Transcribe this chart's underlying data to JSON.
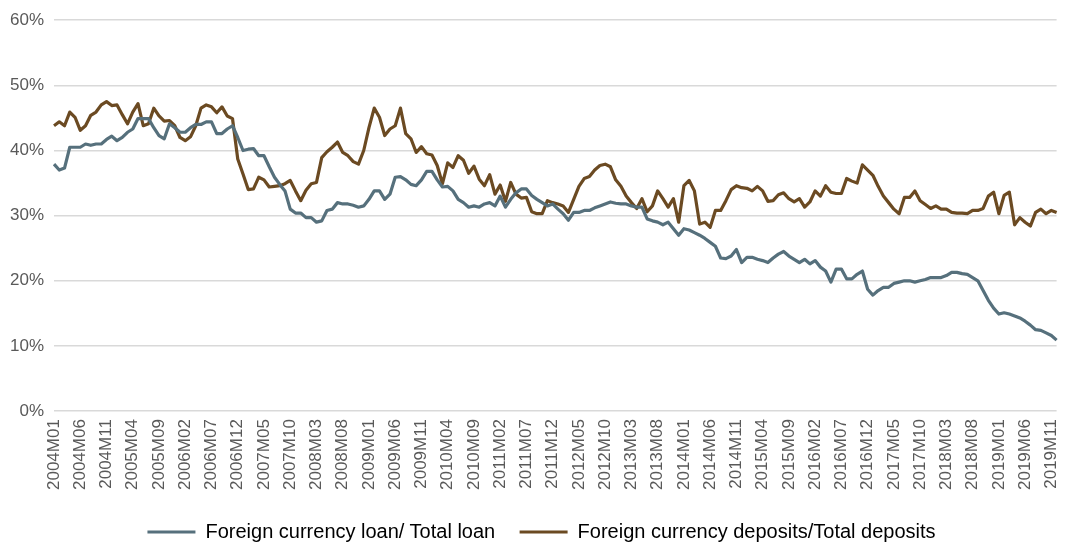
{
  "chart_data": {
    "type": "line",
    "categories": [
      "2004M01",
      null,
      null,
      null,
      null,
      "2004M06",
      null,
      null,
      null,
      null,
      "2004M11",
      null,
      null,
      null,
      null,
      "2005M04",
      null,
      null,
      null,
      null,
      "2005M09",
      null,
      null,
      null,
      null,
      "2006M02",
      null,
      null,
      null,
      null,
      "2006M07",
      null,
      null,
      null,
      null,
      "2006M12",
      null,
      null,
      null,
      null,
      "2007M05",
      null,
      null,
      null,
      null,
      "2007M10",
      null,
      null,
      null,
      null,
      "2008M03",
      null,
      null,
      null,
      null,
      "2008M08",
      null,
      null,
      null,
      null,
      "2009M01",
      null,
      null,
      null,
      null,
      "2009M06",
      null,
      null,
      null,
      null,
      "2009M11",
      null,
      null,
      null,
      null,
      "2010M04",
      null,
      null,
      null,
      null,
      "2010M09",
      null,
      null,
      null,
      null,
      "2011M02",
      null,
      null,
      null,
      null,
      "2011M07",
      null,
      null,
      null,
      null,
      "2011M12",
      null,
      null,
      null,
      null,
      "2012M05",
      null,
      null,
      null,
      null,
      "2012M10",
      null,
      null,
      null,
      null,
      "2013M03",
      null,
      null,
      null,
      null,
      "2013M08",
      null,
      null,
      null,
      null,
      "2014M01",
      null,
      null,
      null,
      null,
      "2014M06",
      null,
      null,
      null,
      null,
      "2014M11",
      null,
      null,
      null,
      null,
      "2015M04",
      null,
      null,
      null,
      null,
      "2015M09",
      null,
      null,
      null,
      null,
      "2016M02",
      null,
      null,
      null,
      null,
      "2016M07",
      null,
      null,
      null,
      null,
      "2016M12",
      null,
      null,
      null,
      null,
      "2017M05",
      null,
      null,
      null,
      null,
      "2017M10",
      null,
      null,
      null,
      null,
      "2018M03",
      null,
      null,
      null,
      null,
      "2018M08",
      null,
      null,
      null,
      null,
      "2019M01",
      null,
      null,
      null,
      null,
      "2019M06",
      null,
      null,
      null,
      null,
      "2019M11",
      null
    ],
    "series": [
      {
        "name": "Foreign currency loan/ Total loan",
        "color": "#56707c",
        "values": [
          37.9,
          37.0,
          37.3,
          40.5,
          40.5,
          40.5,
          41.0,
          40.8,
          41,
          41,
          41.7,
          42.2,
          41.5,
          42,
          42.8,
          43.3,
          44.9,
          44.9,
          44.9,
          43.5,
          42.3,
          41.8,
          44.1,
          43.5,
          42.8,
          42.8,
          43.5,
          44,
          44,
          44.4,
          44.4,
          42.6,
          42.6,
          43.3,
          43.8,
          42,
          40,
          40.2,
          40.3,
          39.2,
          39.2,
          37.5,
          35.9,
          34.8,
          33.8,
          31,
          30.4,
          30.4,
          29.7,
          29.7,
          29.0,
          29.2,
          30.8,
          31,
          32,
          31.8,
          31.8,
          31.6,
          31.3,
          31.5,
          32.5,
          33.8,
          33.8,
          32.5,
          33.3,
          35.9,
          36,
          35.5,
          34.8,
          34.6,
          35.5,
          36.8,
          36.8,
          35.5,
          34.4,
          34.5,
          33.8,
          32.5,
          32,
          31.3,
          31.5,
          31.3,
          31.8,
          32,
          31.5,
          33,
          31.3,
          32.5,
          33.5,
          34.1,
          34.1,
          33.1,
          32.5,
          32,
          31.5,
          31.8,
          31,
          30.3,
          29.3,
          30.5,
          30.5,
          30.8,
          30.8,
          31.2,
          31.5,
          31.8,
          32.1,
          31.9,
          31.8,
          31.8,
          31.5,
          31.3,
          31.3,
          29.5,
          29.2,
          29,
          28.6,
          29,
          28,
          27,
          28,
          27.8,
          27.4,
          27,
          26.5,
          25.9,
          25.3,
          23.5,
          23.4,
          23.8,
          24.8,
          22.8,
          23.6,
          23.6,
          23.3,
          23.1,
          22.8,
          23.5,
          24.1,
          24.5,
          23.8,
          23.3,
          22.8,
          23.3,
          22.6,
          23.1,
          22.1,
          21.5,
          19.8,
          21.8,
          21.8,
          20.3,
          20.3,
          21,
          21.5,
          18.7,
          17.8,
          18.5,
          19,
          19,
          19.6,
          19.8,
          20,
          20,
          19.8,
          20,
          20.2,
          20.5,
          20.5,
          20.5,
          20.8,
          21.3,
          21.3,
          21.1,
          21,
          20.5,
          20,
          18.5,
          17,
          15.8,
          14.9,
          15.1,
          14.9,
          14.6,
          14.3,
          13.8,
          13.2,
          12.5,
          12.4,
          12,
          11.6,
          10.9
        ]
      },
      {
        "name": "Foreign currency deposits/Total deposits",
        "color": "#6b4a22",
        "values": [
          43.8,
          44.4,
          43.8,
          45.9,
          45.1,
          43.1,
          43.8,
          45.4,
          45.9,
          47,
          47.5,
          46.9,
          47,
          45.5,
          44.1,
          45.9,
          47.2,
          43.8,
          44.1,
          46.5,
          45.3,
          44.5,
          44.6,
          43.8,
          42,
          41.5,
          42.1,
          43.8,
          46.5,
          47,
          46.7,
          45.8,
          46.7,
          45.3,
          44.9,
          38.7,
          36.4,
          34,
          34.1,
          35.9,
          35.5,
          34.4,
          34.5,
          34.6,
          34.9,
          35.4,
          33.8,
          32.3,
          33.9,
          34.9,
          35.1,
          38.9,
          39.8,
          40.5,
          41.3,
          39.7,
          39.2,
          38.3,
          37.9,
          40,
          43.5,
          46.5,
          45.1,
          42.3,
          43.3,
          43.8,
          46.5,
          42.6,
          41.8,
          39.7,
          40.6,
          39.5,
          39.3,
          37.7,
          34.9,
          38.1,
          37.4,
          39.2,
          38.5,
          36.5,
          37.6,
          35.6,
          34.6,
          36.3,
          33.3,
          34.7,
          32.2,
          35.1,
          33.3,
          32.7,
          32.8,
          30.6,
          30.3,
          30.3,
          32.3,
          32,
          31.8,
          31.5,
          30.5,
          32.5,
          34.5,
          35.7,
          36,
          37,
          37.7,
          37.9,
          37.5,
          35.5,
          34.5,
          33,
          32,
          31.1,
          32.6,
          30.6,
          31.5,
          33.8,
          32.6,
          31.3,
          32.6,
          29,
          34.6,
          35.4,
          33.8,
          28.7,
          29,
          28.2,
          30.8,
          30.8,
          32.3,
          34,
          34.6,
          34.3,
          34.2,
          33.8,
          34.5,
          33.8,
          32.2,
          32.3,
          33.2,
          33.5,
          32.6,
          32.1,
          32.6,
          31.3,
          32.1,
          33.8,
          33,
          34.6,
          33.6,
          33.4,
          33.4,
          35.7,
          35.3,
          35,
          37.8,
          37,
          36.2,
          34.5,
          33,
          32,
          31,
          30.3,
          32.8,
          32.8,
          33.8,
          32.3,
          31.7,
          31.1,
          31.5,
          31,
          31,
          30.5,
          30.4,
          30.4,
          30.3,
          30.8,
          30.8,
          31.1,
          33,
          33.6,
          30.3,
          33.1,
          33.6,
          28.6,
          29.7,
          29,
          28.4,
          30.5,
          31,
          30.3,
          30.8,
          30.5
        ]
      }
    ],
    "ylim": [
      0,
      60
    ],
    "yticks": [
      {
        "value": 0,
        "label": "0%"
      },
      {
        "value": 10,
        "label": "10%"
      },
      {
        "value": 20,
        "label": "20%"
      },
      {
        "value": 30,
        "label": "30%"
      },
      {
        "value": 40,
        "label": "40%"
      },
      {
        "value": 50,
        "label": "50%"
      },
      {
        "value": 60,
        "label": "60%"
      }
    ],
    "grid": "y",
    "legend": "bottom",
    "marker": "none",
    "line_style": "solid"
  }
}
